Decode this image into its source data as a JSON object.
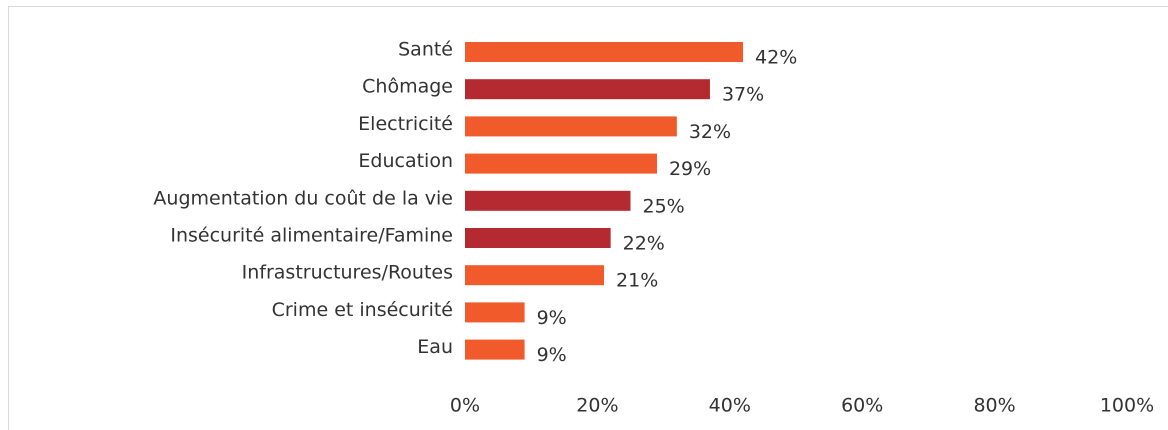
{
  "chart_data": {
    "type": "bar",
    "orientation": "horizontal",
    "categories": [
      "Santé",
      "Chômage",
      "Electricité",
      "Education",
      "Augmentation du coût de la vie",
      "Insécurité alimentaire/Famine",
      "Infrastructures/Routes",
      "Crime et insécurité",
      "Eau"
    ],
    "values": [
      42,
      37,
      32,
      29,
      25,
      22,
      21,
      9,
      9
    ],
    "value_labels": [
      "42%",
      "37%",
      "32%",
      "29%",
      "25%",
      "22%",
      "21%",
      "9%",
      "9%"
    ],
    "colors": [
      "#f15a2b",
      "#b52a30",
      "#f15a2b",
      "#f15a2b",
      "#b52a30",
      "#b52a30",
      "#f15a2b",
      "#f15a2b",
      "#f15a2b"
    ],
    "xlim": [
      0,
      100
    ],
    "xticks": [
      {
        "value": 0,
        "label": "0%"
      },
      {
        "value": 20,
        "label": "20%"
      },
      {
        "value": 40,
        "label": "40%"
      },
      {
        "value": 60,
        "label": "60%"
      },
      {
        "value": 80,
        "label": "80%"
      },
      {
        "value": 100,
        "label": "100%"
      }
    ],
    "grid": false
  }
}
